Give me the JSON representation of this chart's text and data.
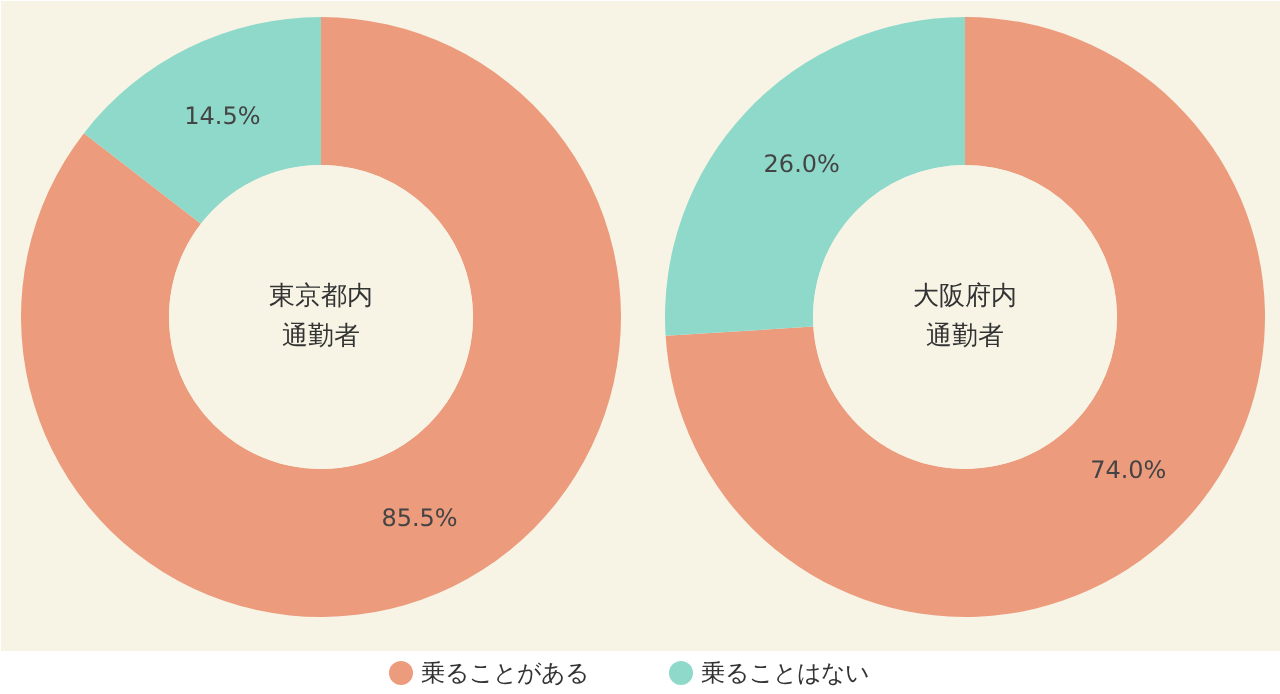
{
  "chart_data": [
    {
      "type": "donut",
      "title": "東京都内通勤者",
      "categories": [
        "乗ることがある",
        "乗ることはない"
      ],
      "values": [
        85.5,
        14.5
      ],
      "colors": [
        "#ec9b7c",
        "#8fd9cb"
      ],
      "value_labels": [
        "85.5%",
        "14.5%"
      ],
      "legend": "bottom"
    },
    {
      "type": "donut",
      "title": "大阪府内通勤者",
      "categories": [
        null,
        null
      ],
      "values": [
        74.0,
        26.0
      ],
      "colors": [
        "#ec9b7c",
        "#8fd9cb"
      ],
      "value_labels": [
        "74.0%",
        "26.0%"
      ]
    }
  ]
}
